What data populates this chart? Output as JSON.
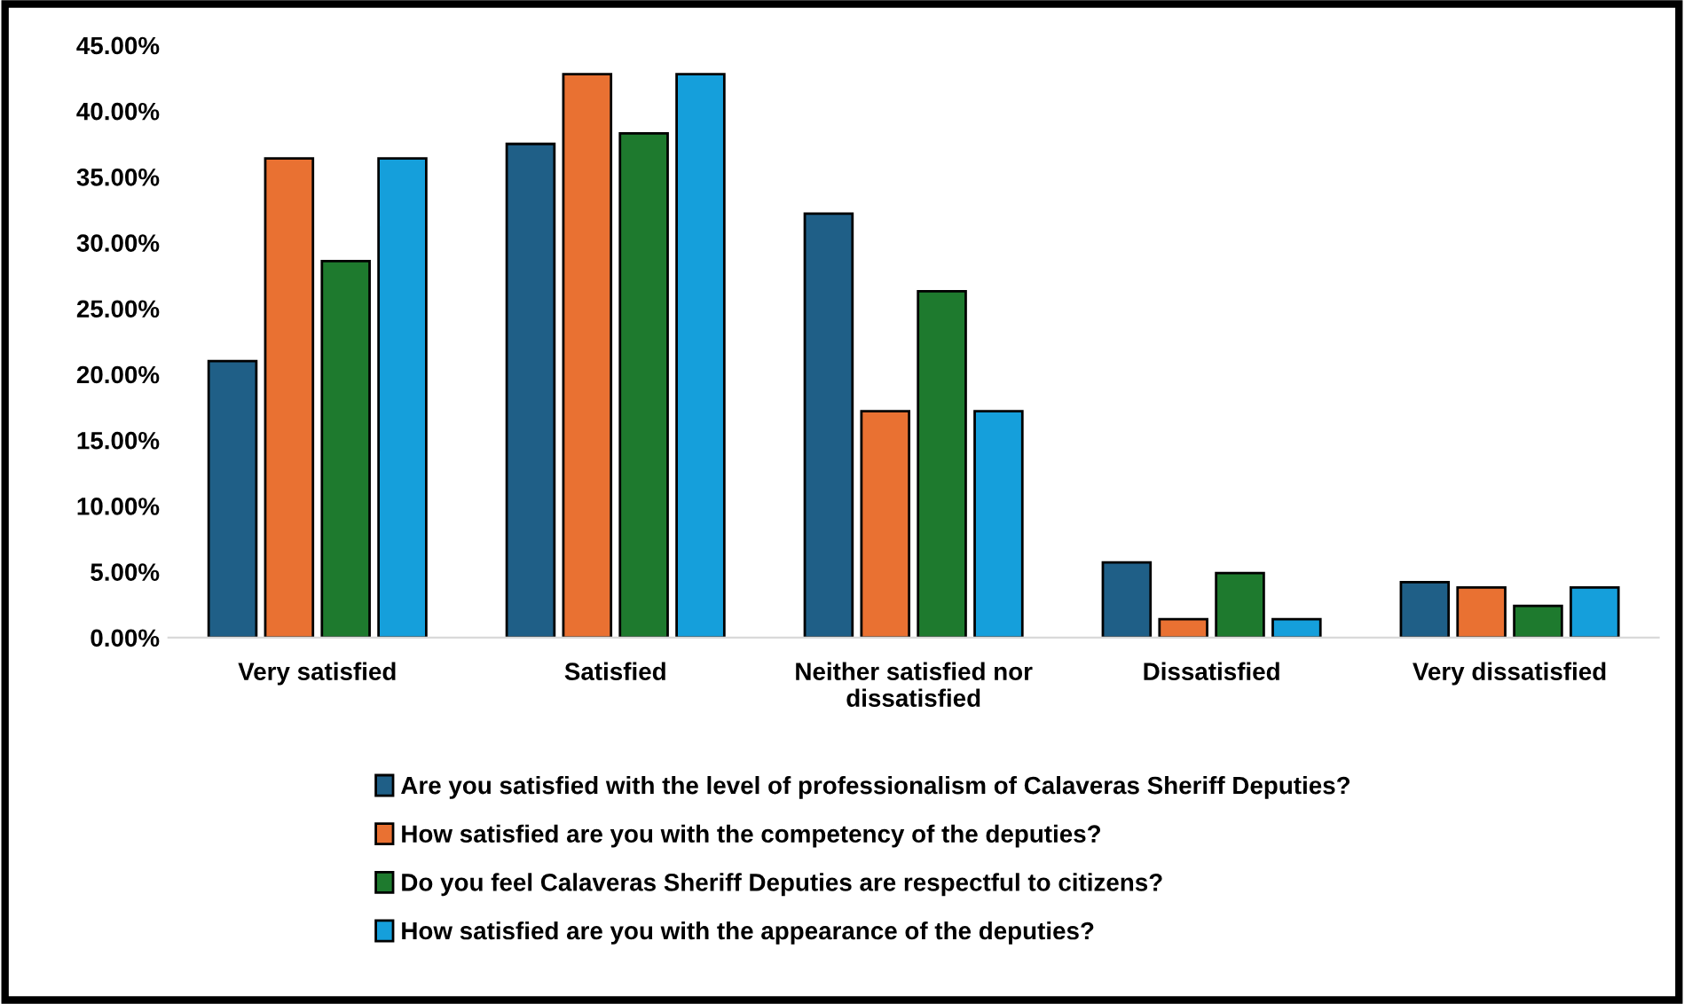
{
  "chart_data": {
    "type": "bar",
    "categories": [
      "Very satisfied",
      "Satisfied",
      "Neither satisfied nor\ndissatisfied",
      "Dissatisfied",
      "Very dissatisfied"
    ],
    "series": [
      {
        "name": "Are you satisfied with the level of professionalism of Calaveras Sheriff Deputies?",
        "color": "#1f5f87",
        "values": [
          21.0,
          37.5,
          32.2,
          5.7,
          4.2
        ]
      },
      {
        "name": "How satisfied are you with the competency of the deputies?",
        "color": "#e97132",
        "values": [
          36.4,
          42.8,
          17.2,
          1.4,
          3.8
        ]
      },
      {
        "name": "Do you feel Calaveras Sheriff Deputies are respectful to citizens?",
        "color": "#1e7a2e",
        "values": [
          28.6,
          38.3,
          26.3,
          4.9,
          2.4
        ]
      },
      {
        "name": "How satisfied are you with the appearance of the deputies?",
        "color": "#159fdb",
        "values": [
          36.4,
          42.8,
          17.2,
          1.4,
          3.8
        ]
      }
    ],
    "ylim": [
      0,
      45
    ],
    "yticks": [
      {
        "value": 0,
        "label": "0.00%"
      },
      {
        "value": 5,
        "label": "5.00%"
      },
      {
        "value": 10,
        "label": "10.00%"
      },
      {
        "value": 15,
        "label": "15.00%"
      },
      {
        "value": 20,
        "label": "20.00%"
      },
      {
        "value": 25,
        "label": "25.00%"
      },
      {
        "value": 30,
        "label": "30.00%"
      },
      {
        "value": 35,
        "label": "35.00%"
      },
      {
        "value": 40,
        "label": "40.00%"
      },
      {
        "value": 45,
        "label": "45.00%"
      }
    ],
    "grid": false,
    "legend": "bottom"
  }
}
